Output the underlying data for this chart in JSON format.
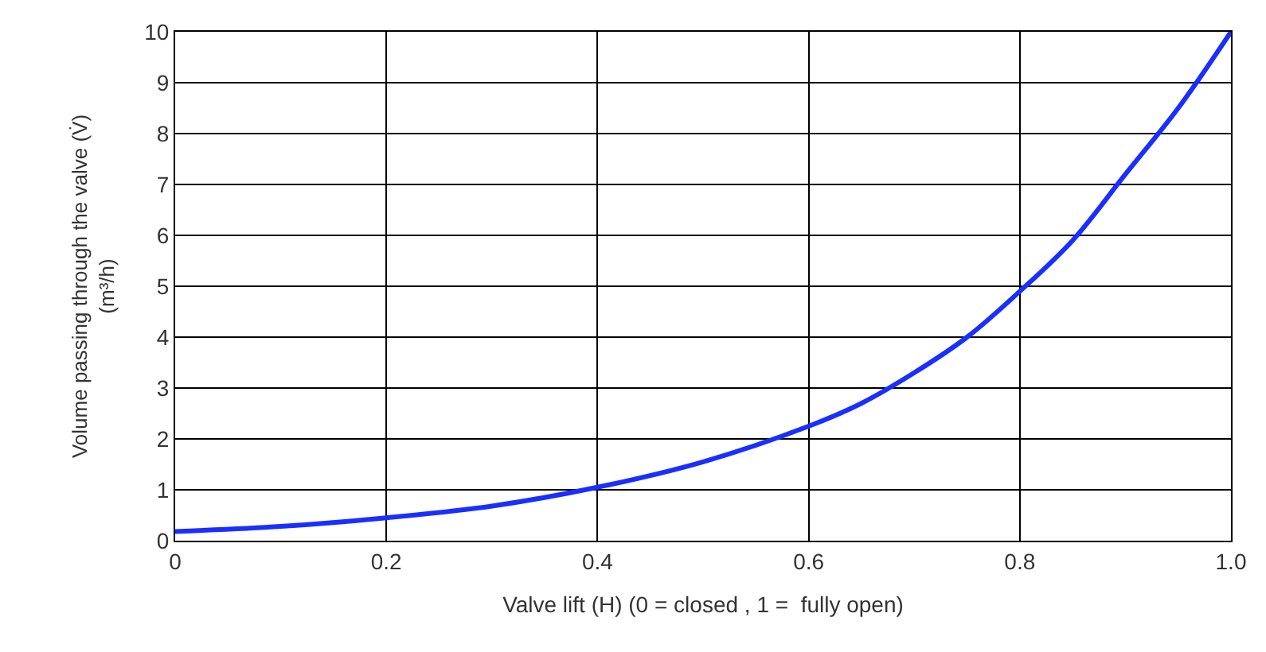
{
  "chart_data": {
    "type": "line",
    "xlabel": "Valve lift (H) (0 = closed , 1 =  fully open)",
    "ylabel": "Volume passing through the valve (V̇)\n(m³/h)",
    "x": [
      0,
      0.1,
      0.2,
      0.3,
      0.4,
      0.5,
      0.6,
      0.65,
      0.7,
      0.75,
      0.8,
      0.85,
      0.9,
      0.95,
      1.0
    ],
    "series": [
      {
        "color": "#1a2fff",
        "values": [
          0.18,
          0.28,
          0.45,
          0.68,
          1.05,
          1.55,
          2.25,
          2.7,
          3.3,
          4.0,
          4.9,
          5.9,
          7.2,
          8.5,
          10
        ]
      }
    ],
    "xlim": [
      0,
      1
    ],
    "xticks": [
      0,
      0.2,
      0.4,
      0.6,
      0.8,
      {
        "value": 1,
        "label": "1.0"
      }
    ],
    "ylim": [
      0,
      10
    ],
    "yticks": [
      0,
      1,
      2,
      3,
      4,
      5,
      6,
      7,
      8,
      9,
      10
    ],
    "grid": true,
    "legend": false,
    "marker": "none",
    "line_style": "solid"
  }
}
